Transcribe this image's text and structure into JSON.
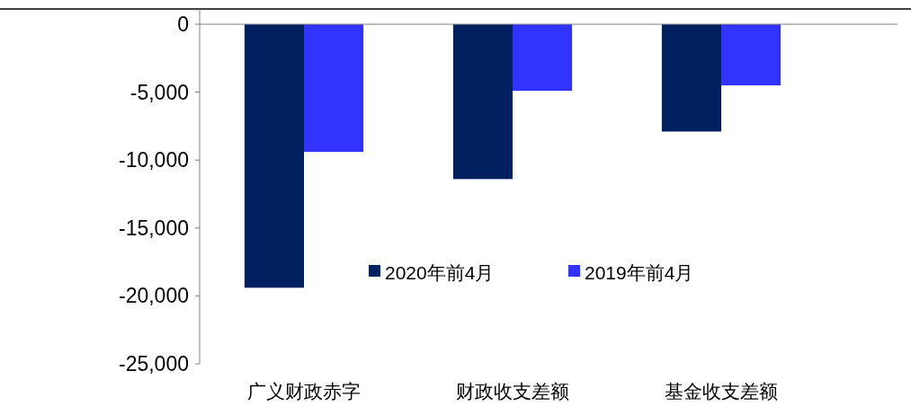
{
  "chart_data": {
    "type": "bar",
    "categories": [
      "广义财政赤字",
      "财政收支差额",
      "基金收支差额"
    ],
    "series": [
      {
        "name": "2020年前4月",
        "color": "#002060",
        "values": [
          -19400,
          -11400,
          -7900
        ]
      },
      {
        "name": "2019年前4月",
        "color": "#3333ff",
        "values": [
          -9400,
          -4900,
          -4500
        ]
      }
    ],
    "ylim": [
      -25000,
      0
    ],
    "yticks": [
      {
        "value": -25000,
        "label": "-25,000"
      },
      {
        "value": -20000,
        "label": "-20,000"
      },
      {
        "value": -15000,
        "label": "-15,000"
      },
      {
        "value": -10000,
        "label": "-10,000"
      },
      {
        "value": -5000,
        "label": "-5,000"
      },
      0
    ],
    "grid": false,
    "legend": "bottom right"
  }
}
